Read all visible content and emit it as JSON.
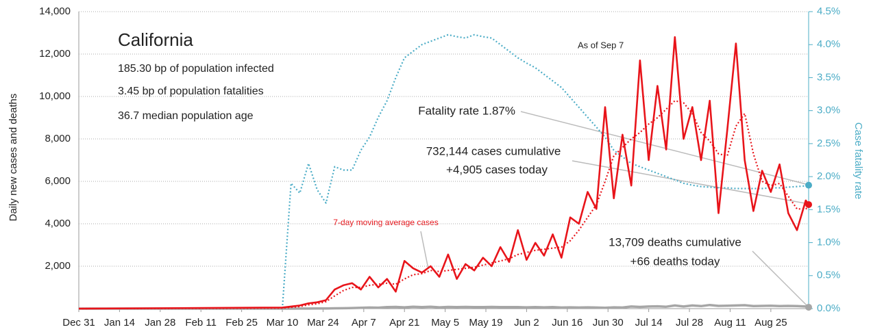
{
  "chart_data": {
    "type": "line",
    "title": "California",
    "subtitle": [
      "185.30 bp of population infected",
      "3.45 bp of population fatalities",
      "36.7 median population age"
    ],
    "annotations": [
      "As of Sep 7",
      "Fatality rate 1.87%",
      "732,144 cases cumulative",
      "+4,905 cases today",
      "13,709 deaths cumulative",
      "+66 deaths today"
    ],
    "ylabel": "Daily new cases and deaths",
    "y2label": "Case fatality rate",
    "x": [
      "Dec 31",
      "Mar 10",
      "Mar 13",
      "Mar 16",
      "Mar 19",
      "Mar 22",
      "Mar 25",
      "Mar 28",
      "Mar 31",
      "Apr 3",
      "Apr 6",
      "Apr 9",
      "Apr 12",
      "Apr 15",
      "Apr 18",
      "Apr 21",
      "Apr 24",
      "Apr 27",
      "Apr 30",
      "May 3",
      "May 6",
      "May 9",
      "May 12",
      "May 15",
      "May 18",
      "May 21",
      "May 24",
      "May 27",
      "May 30",
      "Jun 2",
      "Jun 5",
      "Jun 8",
      "Jun 11",
      "Jun 14",
      "Jun 17",
      "Jun 20",
      "Jun 23",
      "Jun 26",
      "Jun 29",
      "Jul 2",
      "Jul 5",
      "Jul 8",
      "Jul 11",
      "Jul 14",
      "Jul 17",
      "Jul 20",
      "Jul 23",
      "Jul 26",
      "Jul 29",
      "Aug 1",
      "Aug 4",
      "Aug 7",
      "Aug 10",
      "Aug 13",
      "Aug 16",
      "Aug 19",
      "Aug 22",
      "Aug 25",
      "Aug 28",
      "Aug 31",
      "Sep 3",
      "Sep 6",
      "Sep 7"
    ],
    "series": [
      {
        "color": "#e8141a",
        "style": "solid",
        "end_dot": true,
        "values": [
          0,
          50,
          100,
          150,
          250,
          300,
          400,
          900,
          1100,
          1200,
          900,
          1500,
          1000,
          1400,
          800,
          2250,
          1900,
          1700,
          2000,
          1500,
          2550,
          1400,
          2100,
          1800,
          2400,
          2000,
          2900,
          2200,
          3700,
          2300,
          3100,
          2500,
          3500,
          2400,
          4300,
          4000,
          5500,
          4700,
          9500,
          5200,
          8200,
          5800,
          11700,
          7000,
          10500,
          7500,
          12800,
          8000,
          9500,
          7000,
          9800,
          4500,
          8400,
          12500,
          7000,
          4600,
          6500,
          5500,
          6800,
          4500,
          3700,
          5100,
          4905
        ]
      },
      {
        "name": "7-day moving average cases",
        "color": "#e8141a",
        "style": "dotted",
        "values": [
          0,
          30,
          60,
          100,
          180,
          230,
          330,
          600,
          850,
          1000,
          1000,
          1100,
          1150,
          1200,
          1150,
          1400,
          1600,
          1650,
          1800,
          1750,
          1800,
          1850,
          1900,
          1950,
          2050,
          2150,
          2250,
          2350,
          2550,
          2650,
          2750,
          2800,
          2850,
          2900,
          3200,
          3700,
          4300,
          4900,
          6000,
          7200,
          7600,
          8000,
          8300,
          8700,
          9000,
          9400,
          9800,
          9700,
          9200,
          8300,
          7900,
          7300,
          7200,
          8600,
          9200,
          7300,
          6000,
          5800,
          5900,
          5300,
          4700,
          4700,
          4800
        ]
      },
      {
        "color": "#a6a6a6",
        "style": "thick",
        "end_dot": true,
        "values": [
          0,
          0,
          1,
          2,
          3,
          5,
          10,
          15,
          20,
          30,
          40,
          50,
          45,
          70,
          80,
          60,
          90,
          70,
          90,
          60,
          80,
          70,
          80,
          75,
          70,
          80,
          70,
          75,
          70,
          60,
          70,
          60,
          70,
          50,
          60,
          50,
          60,
          50,
          40,
          60,
          50,
          100,
          80,
          100,
          110,
          90,
          150,
          100,
          150,
          120,
          170,
          130,
          140,
          150,
          160,
          120,
          130,
          140,
          120,
          130,
          120,
          100,
          66
        ]
      },
      {
        "color": "#4bacc6",
        "style": "dotted",
        "axis": "y2",
        "end_dot": true,
        "values": [
          null,
          0,
          1.9,
          1.75,
          2.2,
          1.8,
          1.6,
          2.15,
          2.1,
          2.1,
          2.4,
          2.6,
          2.9,
          3.15,
          3.5,
          3.8,
          3.9,
          4.0,
          4.05,
          4.1,
          4.15,
          4.12,
          4.1,
          4.15,
          4.12,
          4.1,
          4.0,
          3.9,
          3.8,
          3.72,
          3.65,
          3.55,
          3.45,
          3.35,
          3.2,
          3.05,
          2.9,
          2.75,
          2.6,
          2.4,
          2.3,
          2.2,
          2.15,
          2.1,
          2.05,
          2.0,
          1.95,
          1.9,
          1.87,
          1.85,
          1.84,
          1.83,
          1.83,
          1.82,
          1.82,
          1.82,
          1.82,
          1.83,
          1.83,
          1.84,
          1.85,
          1.86,
          1.87
        ]
      }
    ],
    "xlim": [
      "Dec 31",
      "Sep 7"
    ],
    "xticks": [
      "Dec 31",
      "Jan 14",
      "Jan 28",
      "Feb 11",
      "Feb 25",
      "Mar 10",
      "Mar 24",
      "Apr 7",
      "Apr 21",
      "May 5",
      "May 19",
      "Jun 2",
      "Jun 16",
      "Jun 30",
      "Jul 14",
      "Jul 28",
      "Aug 11",
      "Aug 25"
    ],
    "ylim": [
      0,
      14000
    ],
    "yticks": [
      {
        "value": 2000,
        "label": "2,000"
      },
      {
        "value": 4000,
        "label": "4,000"
      },
      {
        "value": 6000,
        "label": "6,000"
      },
      {
        "value": 8000,
        "label": "8,000"
      },
      {
        "value": 10000,
        "label": "10,000"
      },
      {
        "value": 12000,
        "label": "12,000"
      },
      {
        "value": 14000,
        "label": "14,000"
      }
    ],
    "y2lim": [
      0,
      4.5
    ],
    "y2ticks": [
      {
        "value": 0,
        "label": "0.0%"
      },
      {
        "value": 0.5,
        "label": "0.5%"
      },
      {
        "value": 1,
        "label": "1.0%"
      },
      {
        "value": 1.5,
        "label": "1.5%"
      },
      {
        "value": 2,
        "label": "2.0%"
      },
      {
        "value": 2.5,
        "label": "2.5%"
      },
      {
        "value": 3,
        "label": "3.0%"
      },
      {
        "value": 3.5,
        "label": "3.5%"
      },
      {
        "value": 4,
        "label": "4.0%"
      },
      {
        "value": 4.5,
        "label": "4.5%"
      }
    ],
    "y2color": "#4bacc6",
    "grid": true
  }
}
